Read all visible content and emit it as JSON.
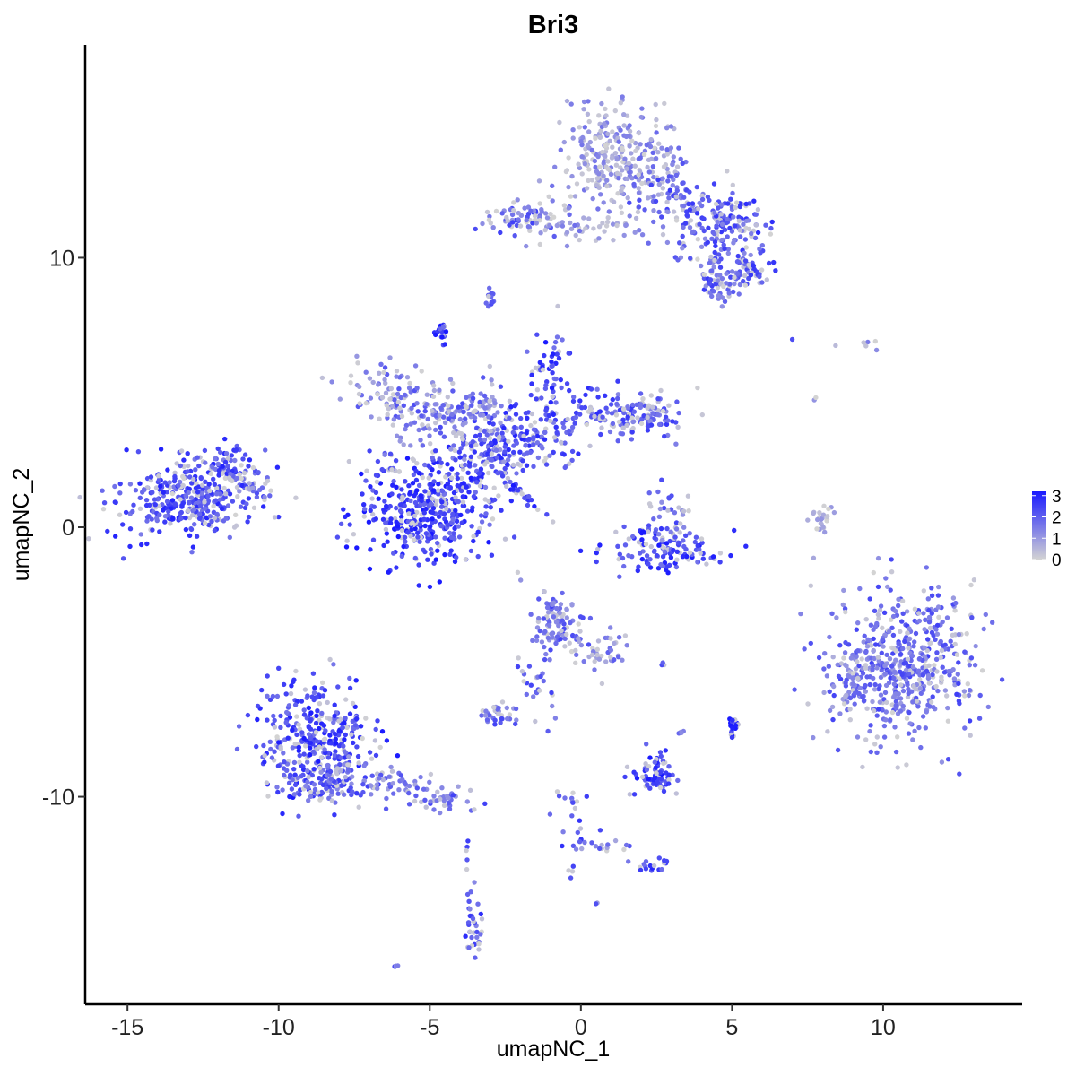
{
  "chart_data": {
    "type": "scatter",
    "title": "Bri3",
    "xlabel": "umapNC_1",
    "ylabel": "umapNC_2",
    "xlim": [
      -16.4,
      14.6
    ],
    "ylim": [
      -17.7,
      17.9
    ],
    "xticks": [
      -15,
      -10,
      -5,
      0,
      5,
      10
    ],
    "xtick_labels": [
      "-15",
      "-10",
      "-5",
      "0",
      "5",
      "10"
    ],
    "yticks": [
      -10,
      0,
      10
    ],
    "ytick_labels": [
      "-10",
      "0",
      "10"
    ],
    "grid": false,
    "legend": {
      "placement": "right",
      "type": "colorbar",
      "range": [
        0,
        3.2
      ],
      "ticks": [
        0,
        1,
        2,
        3
      ],
      "tick_labels": [
        "0",
        "1",
        "2",
        "3"
      ],
      "low_color": "#d3d3d3",
      "high_color": "#1a1aff"
    },
    "point_colors": {
      "low": "#d3d3d3",
      "high": "#1a1aff"
    },
    "clusters": [
      {
        "cx": -12.8,
        "cy": 1.1,
        "sx": 1.2,
        "sy": 0.7,
        "n": 380,
        "expr": 0.72,
        "rot": 0.15
      },
      {
        "cx": -11.5,
        "cy": 2.4,
        "sx": 0.5,
        "sy": 0.3,
        "n": 40,
        "expr": 0.7,
        "rot": 0
      },
      {
        "cx": -10.9,
        "cy": 1.4,
        "sx": 0.4,
        "sy": 0.2,
        "n": 20,
        "expr": 0.45,
        "rot": 0
      },
      {
        "cx": -5.6,
        "cy": 0.6,
        "sx": 1.0,
        "sy": 1.0,
        "n": 320,
        "expr": 0.8,
        "rot": 0
      },
      {
        "cx": -4.1,
        "cy": 1.0,
        "sx": 0.8,
        "sy": 1.2,
        "n": 140,
        "expr": 0.75,
        "rot": 0
      },
      {
        "cx": -3.2,
        "cy": 2.8,
        "sx": 1.0,
        "sy": 0.6,
        "n": 120,
        "expr": 0.7,
        "rot": 0.2
      },
      {
        "cx": -6.3,
        "cy": 5.0,
        "sx": 0.8,
        "sy": 0.5,
        "n": 90,
        "expr": 0.45,
        "rot": -0.3
      },
      {
        "cx": -4.8,
        "cy": 4.1,
        "sx": 1.0,
        "sy": 0.4,
        "n": 100,
        "expr": 0.5,
        "rot": 0.3
      },
      {
        "cx": -3.3,
        "cy": 4.0,
        "sx": 0.6,
        "sy": 0.8,
        "n": 70,
        "expr": 0.5,
        "rot": 0
      },
      {
        "cx": -1.6,
        "cy": 3.4,
        "sx": 0.8,
        "sy": 0.6,
        "n": 110,
        "expr": 0.7,
        "rot": 0
      },
      {
        "cx": -1.0,
        "cy": 5.6,
        "sx": 0.4,
        "sy": 0.8,
        "n": 60,
        "expr": 0.75,
        "rot": 0
      },
      {
        "cx": 0.6,
        "cy": 4.3,
        "sx": 0.9,
        "sy": 0.4,
        "n": 80,
        "expr": 0.65,
        "rot": 0
      },
      {
        "cx": 2.2,
        "cy": 4.1,
        "sx": 0.6,
        "sy": 0.4,
        "n": 90,
        "expr": 0.6,
        "rot": 0
      },
      {
        "cx": -4.6,
        "cy": 7.3,
        "sx": 0.12,
        "sy": 0.2,
        "n": 20,
        "expr": 0.8,
        "rot": 0
      },
      {
        "cx": -1.9,
        "cy": 1.2,
        "sx": 0.6,
        "sy": 0.08,
        "n": 30,
        "expr": 0.8,
        "rot": -0.8
      },
      {
        "cx": 0.8,
        "cy": 13.7,
        "sx": 0.7,
        "sy": 1.0,
        "n": 200,
        "expr": 0.28,
        "rot": 0
      },
      {
        "cx": 2.4,
        "cy": 13.5,
        "sx": 0.5,
        "sy": 0.9,
        "n": 110,
        "expr": 0.35,
        "rot": 0
      },
      {
        "cx": -2.0,
        "cy": 11.5,
        "sx": 0.7,
        "sy": 0.4,
        "n": 80,
        "expr": 0.55,
        "rot": 0
      },
      {
        "cx": 0.3,
        "cy": 11.1,
        "sx": 0.7,
        "sy": 0.2,
        "n": 40,
        "expr": 0.3,
        "rot": 0
      },
      {
        "cx": 3.6,
        "cy": 11.9,
        "sx": 0.8,
        "sy": 0.6,
        "n": 100,
        "expr": 0.6,
        "rot": 0
      },
      {
        "cx": 5.2,
        "cy": 11.3,
        "sx": 0.6,
        "sy": 0.5,
        "n": 90,
        "expr": 0.65,
        "rot": 0
      },
      {
        "cx": 4.5,
        "cy": 9.8,
        "sx": 0.6,
        "sy": 0.6,
        "n": 70,
        "expr": 0.6,
        "rot": 0
      },
      {
        "cx": 5.5,
        "cy": 9.5,
        "sx": 0.4,
        "sy": 0.3,
        "n": 50,
        "expr": 0.65,
        "rot": 0
      },
      {
        "cx": 4.6,
        "cy": 8.8,
        "sx": 0.2,
        "sy": 0.3,
        "n": 25,
        "expr": 0.6,
        "rot": 0
      },
      {
        "cx": -3.0,
        "cy": 8.5,
        "sx": 0.1,
        "sy": 0.15,
        "n": 12,
        "expr": 0.6,
        "rot": 0
      },
      {
        "cx": 2.8,
        "cy": -0.9,
        "sx": 0.9,
        "sy": 0.35,
        "n": 120,
        "expr": 0.75,
        "rot": 0
      },
      {
        "cx": 2.9,
        "cy": 0.4,
        "sx": 0.4,
        "sy": 0.5,
        "n": 40,
        "expr": 0.55,
        "rot": 0
      },
      {
        "cx": 2.1,
        "cy": -0.2,
        "sx": 0.08,
        "sy": 0.05,
        "n": 6,
        "expr": 0.97,
        "rot": 0
      },
      {
        "cx": 7.9,
        "cy": 0.3,
        "sx": 0.2,
        "sy": 0.5,
        "n": 25,
        "expr": 0.1,
        "rot": 0
      },
      {
        "cx": 10.6,
        "cy": -5.0,
        "sx": 1.2,
        "sy": 1.4,
        "n": 550,
        "expr": 0.55,
        "rot": 0
      },
      {
        "cx": 8.9,
        "cy": -6.0,
        "sx": 0.3,
        "sy": 0.6,
        "n": 40,
        "expr": 0.4,
        "rot": 0
      },
      {
        "cx": -8.8,
        "cy": -7.9,
        "sx": 0.9,
        "sy": 1.1,
        "n": 350,
        "expr": 0.75,
        "rot": 0
      },
      {
        "cx": -8.3,
        "cy": -9.5,
        "sx": 0.8,
        "sy": 0.4,
        "n": 100,
        "expr": 0.6,
        "rot": 0
      },
      {
        "cx": -6.2,
        "cy": -9.5,
        "sx": 1.0,
        "sy": 0.3,
        "n": 70,
        "expr": 0.45,
        "rot": -0.3
      },
      {
        "cx": -4.3,
        "cy": -10.1,
        "sx": 0.4,
        "sy": 0.2,
        "n": 25,
        "expr": 0.55,
        "rot": 0
      },
      {
        "cx": -0.7,
        "cy": -3.6,
        "sx": 0.5,
        "sy": 0.7,
        "n": 110,
        "expr": 0.55,
        "rot": 0
      },
      {
        "cx": 0.6,
        "cy": -4.5,
        "sx": 0.5,
        "sy": 0.5,
        "n": 40,
        "expr": 0.4,
        "rot": 0
      },
      {
        "cx": -1.5,
        "cy": -5.8,
        "sx": 0.3,
        "sy": 0.6,
        "n": 25,
        "expr": 0.6,
        "rot": 0.4
      },
      {
        "cx": -2.6,
        "cy": -7.0,
        "sx": 0.35,
        "sy": 0.2,
        "n": 35,
        "expr": 0.55,
        "rot": 0
      },
      {
        "cx": 2.5,
        "cy": -9.2,
        "sx": 0.4,
        "sy": 0.4,
        "n": 80,
        "expr": 0.8,
        "rot": 0
      },
      {
        "cx": 5.1,
        "cy": -7.4,
        "sx": 0.1,
        "sy": 0.2,
        "n": 25,
        "expr": 0.95,
        "rot": 0
      },
      {
        "cx": -0.3,
        "cy": -11.0,
        "sx": 0.3,
        "sy": 0.7,
        "n": 25,
        "expr": 0.65,
        "rot": 0
      },
      {
        "cx": 0.8,
        "cy": -11.8,
        "sx": 0.6,
        "sy": 0.1,
        "n": 15,
        "expr": 0.45,
        "rot": 0
      },
      {
        "cx": 2.3,
        "cy": -12.5,
        "sx": 0.3,
        "sy": 0.15,
        "n": 18,
        "expr": 0.7,
        "rot": 0
      },
      {
        "cx": -3.5,
        "cy": -14.8,
        "sx": 0.2,
        "sy": 0.6,
        "n": 35,
        "expr": 0.65,
        "rot": 0
      },
      {
        "cx": -3.8,
        "cy": -12.0,
        "sx": 0.05,
        "sy": 0.2,
        "n": 4,
        "expr": 0.7,
        "rot": 0
      },
      {
        "cx": -6.1,
        "cy": -16.3,
        "sx": 0.08,
        "sy": 0.05,
        "n": 4,
        "expr": 0.6,
        "rot": 0
      },
      {
        "cx": 3.3,
        "cy": -7.6,
        "sx": 0.1,
        "sy": 0.1,
        "n": 4,
        "expr": 0.55,
        "rot": 0
      },
      {
        "cx": 2.7,
        "cy": -5.1,
        "sx": 0.1,
        "sy": 0.05,
        "n": 3,
        "expr": 0.6,
        "rot": 0
      },
      {
        "cx": 0.55,
        "cy": -14.0,
        "sx": 0.05,
        "sy": 0.05,
        "n": 2,
        "expr": 0.5,
        "rot": 0
      },
      {
        "cx": 9.7,
        "cy": 6.8,
        "sx": 0.25,
        "sy": 0.15,
        "n": 5,
        "expr": 0.5,
        "rot": 0
      },
      {
        "cx": 7.8,
        "cy": 4.8,
        "sx": 0.05,
        "sy": 0.1,
        "n": 2,
        "expr": 0.1,
        "rot": 0
      },
      {
        "cx": 7.0,
        "cy": 6.9,
        "sx": 0.05,
        "sy": 0.05,
        "n": 1,
        "expr": 0.5,
        "rot": 0
      },
      {
        "cx": 8.5,
        "cy": 6.7,
        "sx": 0.05,
        "sy": 0.05,
        "n": 1,
        "expr": 0.1,
        "rot": 0
      }
    ]
  }
}
